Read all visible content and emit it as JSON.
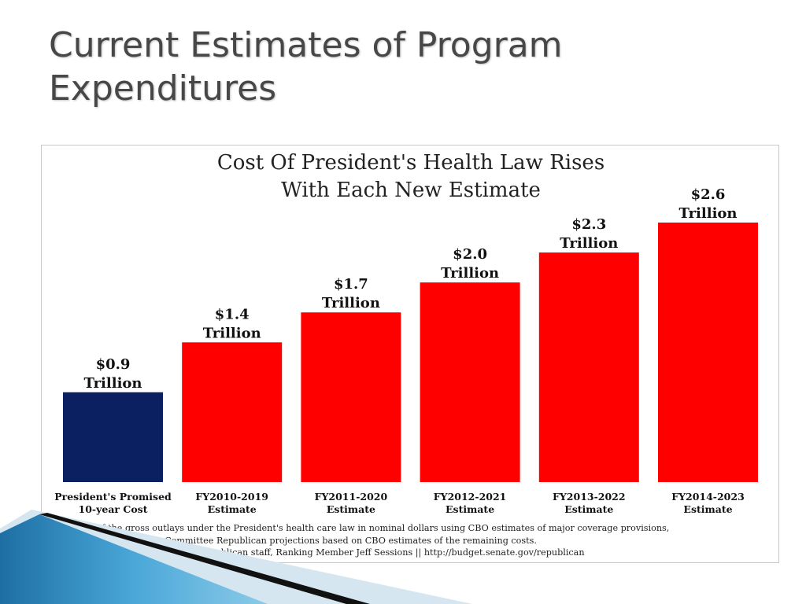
{
  "slide": {
    "title_line1": "Current Estimates of Program",
    "title_line2": "Expenditures"
  },
  "chart_data": {
    "type": "bar",
    "title": "Cost Of President's Health Law Rises",
    "subtitle": "With Each New Estimate",
    "categories": [
      [
        "President's Promised",
        "10-year Cost"
      ],
      [
        "FY2010-2019",
        "Estimate"
      ],
      [
        "FY2011-2020",
        "Estimate"
      ],
      [
        "FY2012-2021",
        "Estimate"
      ],
      [
        "FY2013-2022",
        "Estimate"
      ],
      [
        "FY2014-2023",
        "Estimate"
      ]
    ],
    "values": [
      0.9,
      1.4,
      1.7,
      2.0,
      2.3,
      2.6
    ],
    "value_labels": [
      [
        "$0.9",
        "Trillion"
      ],
      [
        "$1.4",
        "Trillion"
      ],
      [
        "$1.7",
        "Trillion"
      ],
      [
        "$2.0",
        "Trillion"
      ],
      [
        "$2.3",
        "Trillion"
      ],
      [
        "$2.6",
        "Trillion"
      ]
    ],
    "bar_colors": [
      "#0a2060",
      "#ff0000",
      "#ff0000",
      "#ff0000",
      "#ff0000",
      "#ff0000"
    ],
    "unit": "Trillion",
    "ylim": [
      0,
      2.6
    ],
    "grid": false,
    "legend": "none",
    "footnote": [
      "Estimates of the gross outlays under the President's health care law in nominal dollars using CBO estimates of major coverage provisions,",
      "as well as Senate Budget Committee Republican projections based on CBO estimates of the remaining costs.",
      "Sources: CBO. Produced by SBC Republican staff, Ranking Member Jeff Sessions || http://budget.senate.gov/republican"
    ]
  },
  "theme": {
    "decor_light_blue": "#d6e6f0",
    "decor_mid_blue": "#4aa7d8",
    "decor_dark": "#111111"
  }
}
